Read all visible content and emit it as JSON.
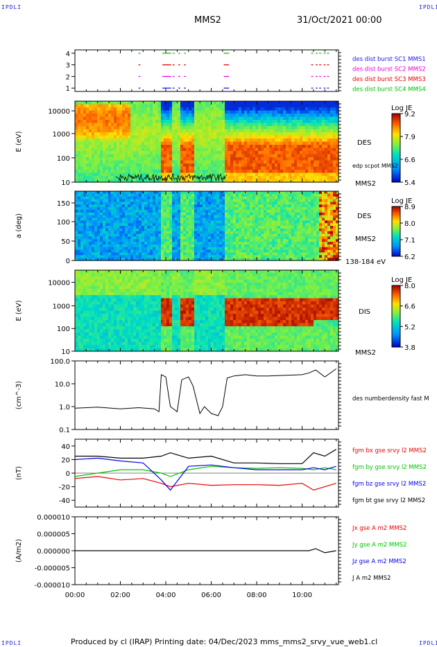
{
  "corner_tag": "IPDLI",
  "header": {
    "spacecraft": "MMS2",
    "datetime": "31/Oct/2021 00:00"
  },
  "footer": "Produced by cl (IRAP)   Printing date: 04/Dec/2023   mms_mms2_srvy_vue_web1.cl",
  "colors": {
    "red": "#e60000",
    "green": "#00c000",
    "blue": "#0000e6",
    "black": "#000000",
    "magenta": "#e600e6",
    "label_blue": "#1a1ae6"
  },
  "chart_data": [
    {
      "type": "scatter",
      "id": "burst",
      "yticks": [
        "4",
        "3",
        "2",
        "1"
      ],
      "legend": [
        {
          "label": "des dist burst SC1 MMS1",
          "color": "#1a1ae6"
        },
        {
          "label": "des dist burst SC2 MMS2",
          "color": "#e600e6"
        },
        {
          "label": "des dist burst SC3 MMS3",
          "color": "#e60000"
        },
        {
          "label": "des dist burst SC4 MMS4",
          "color": "#00c000"
        }
      ],
      "intervals_hours": [
        [
          2.8,
          2.85
        ],
        [
          3.85,
          4.2
        ],
        [
          4.3,
          4.35
        ],
        [
          4.55,
          4.6
        ],
        [
          4.8,
          4.85
        ],
        [
          6.55,
          6.75
        ],
        [
          10.4,
          10.45
        ],
        [
          10.6,
          10.65
        ],
        [
          10.75,
          10.8
        ],
        [
          10.95,
          11.0
        ],
        [
          11.1,
          11.15
        ]
      ]
    },
    {
      "type": "heatmap",
      "id": "des_energy",
      "ylabel": "E (eV)",
      "yscale": "log",
      "yticks": [
        "10000",
        "1000",
        "100",
        "10"
      ],
      "right_label": "DES",
      "right_sub": "edp scpot MMS2",
      "bottom_label": "MMS2",
      "colorbar": {
        "title": "Log JE",
        "ticks": [
          "9.2",
          "7.9",
          "6.6",
          "5.4"
        ]
      }
    },
    {
      "type": "heatmap",
      "id": "des_pitch",
      "ylabel": "a (deg)",
      "yticks": [
        "150",
        "100",
        "50",
        "0"
      ],
      "right_label": "DES",
      "right_sub": "MMS2",
      "bottom_label": "138-184 eV",
      "colorbar": {
        "title": "Log JE",
        "ticks": [
          "8.9",
          "8.0",
          "7.1",
          "6.2"
        ]
      }
    },
    {
      "type": "heatmap",
      "id": "dis_energy",
      "ylabel": "E (eV)",
      "yscale": "log",
      "yticks": [
        "10000",
        "1000",
        "100",
        "10"
      ],
      "right_label": "DIS",
      "bottom_label": "MMS2",
      "colorbar": {
        "title": "Log JE",
        "ticks": [
          "8.0",
          "6.6",
          "5.2",
          "3.8"
        ]
      }
    },
    {
      "type": "line",
      "id": "density",
      "ylabel": "(cm^-3)",
      "yscale": "log",
      "ylim": [
        0.1,
        100
      ],
      "yticks": [
        "100.0",
        "10.0",
        "1.0",
        "0.1"
      ],
      "series": [
        {
          "name": "des numberdensity fast M",
          "color": "#000000",
          "x": [
            0,
            1,
            2,
            2.8,
            3.5,
            3.7,
            3.8,
            4.0,
            4.2,
            4.5,
            4.7,
            5.0,
            5.2,
            5.5,
            5.7,
            6.0,
            6.3,
            6.5,
            6.7,
            7.0,
            7.5,
            8.0,
            8.5,
            9.0,
            9.5,
            10.0,
            10.3,
            10.6,
            11.0,
            11.5
          ],
          "y": [
            0.85,
            0.95,
            0.8,
            0.9,
            0.8,
            0.6,
            25,
            20,
            1.0,
            0.6,
            15,
            20,
            8,
            0.5,
            1.0,
            0.5,
            0.4,
            1.0,
            18,
            22,
            25,
            22,
            22,
            23,
            24,
            25,
            30,
            40,
            20,
            45
          ]
        }
      ]
    },
    {
      "type": "line",
      "id": "magnetic_field",
      "ylabel": "(nT)",
      "ylim": [
        -50,
        50
      ],
      "yticks": [
        "40",
        "20",
        "0",
        "-20",
        "-40"
      ],
      "series": [
        {
          "name": "fgm bx gse srvy l2 MMS2",
          "color": "#e60000",
          "x": [
            0,
            1,
            2,
            3,
            3.8,
            4.2,
            5,
            6,
            7,
            8,
            9,
            10,
            10.5,
            11,
            11.5
          ],
          "y": [
            -8,
            -5,
            -10,
            -8,
            -15,
            -20,
            -15,
            -18,
            -17,
            -17,
            -18,
            -15,
            -25,
            -20,
            -15
          ]
        },
        {
          "name": "fgm by gse srvy l2 MMS2",
          "color": "#00c000",
          "x": [
            0,
            1,
            2,
            3,
            3.8,
            4.2,
            5,
            6,
            7,
            8,
            9,
            10,
            10.5,
            11,
            11.5
          ],
          "y": [
            -5,
            0,
            5,
            5,
            0,
            -5,
            5,
            10,
            8,
            7,
            8,
            7,
            5,
            8,
            5
          ]
        },
        {
          "name": "fgm bz gse srvy l2 MMS2",
          "color": "#0000e6",
          "x": [
            0,
            1,
            2,
            3,
            3.8,
            4.2,
            5,
            6,
            7,
            8,
            9,
            10,
            10.5,
            11,
            11.5
          ],
          "y": [
            20,
            22,
            18,
            15,
            -10,
            -25,
            10,
            12,
            8,
            5,
            5,
            5,
            8,
            5,
            10
          ]
        },
        {
          "name": "fgm bt gse srvy l2 MMS2",
          "color": "#000000",
          "x": [
            0,
            1,
            2,
            3,
            3.8,
            4.2,
            5,
            6,
            7,
            8,
            9,
            10,
            10.5,
            11,
            11.5
          ],
          "y": [
            25,
            25,
            22,
            22,
            25,
            30,
            22,
            25,
            15,
            15,
            14,
            14,
            30,
            25,
            35
          ]
        }
      ]
    },
    {
      "type": "line",
      "id": "current_density",
      "ylabel": "(A/m2)",
      "ylim": [
        -1e-05,
        1e-05
      ],
      "yticks": [
        "0.000010",
        "0.000005",
        "0.000000",
        "-0.000005",
        "-0.000010"
      ],
      "series": [
        {
          "name": "Jx gse A m2 MMS2",
          "color": "#e60000"
        },
        {
          "name": "Jy gse A m2 MMS2",
          "color": "#00c000"
        },
        {
          "name": "Jz gse A m2 MMS2",
          "color": "#0000e6"
        },
        {
          "name": "J A m2 MMS2",
          "color": "#000000"
        }
      ],
      "x": [
        0,
        2,
        4,
        6,
        8,
        10,
        10.3,
        10.6,
        11,
        11.5
      ],
      "y": [
        0,
        0,
        0,
        0,
        0,
        0,
        0,
        6e-07,
        -6e-07,
        0
      ]
    }
  ],
  "xaxis": {
    "ticks": [
      "00:00",
      "02:00",
      "04:00",
      "06:00",
      "08:00",
      "10:00"
    ],
    "xlim_hours": [
      0,
      11.6
    ]
  }
}
